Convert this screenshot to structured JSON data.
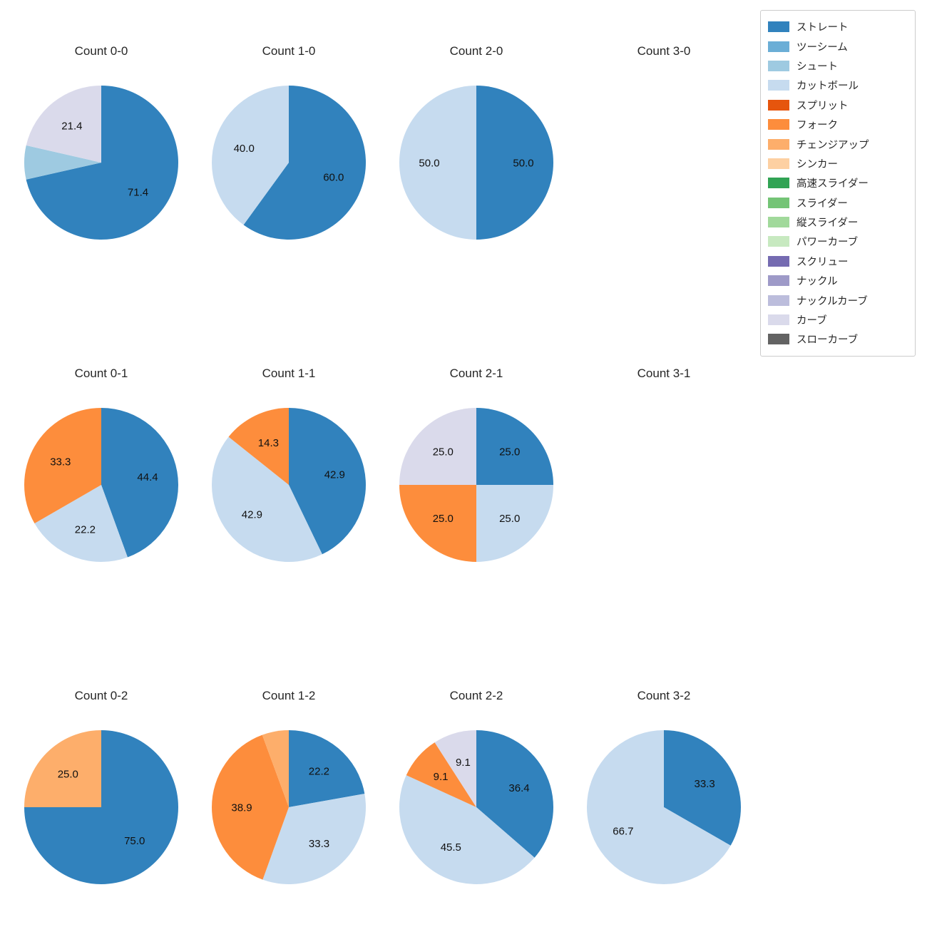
{
  "figure": {
    "background": "#ffffff"
  },
  "legend": {
    "position": "top-right",
    "items": [
      {
        "label": "ストレート",
        "color": "#3182bd"
      },
      {
        "label": "ツーシーム",
        "color": "#6baed6"
      },
      {
        "label": "シュート",
        "color": "#9ecae1"
      },
      {
        "label": "カットボール",
        "color": "#c6dbef"
      },
      {
        "label": "スプリット",
        "color": "#e6550d"
      },
      {
        "label": "フォーク",
        "color": "#fd8d3c"
      },
      {
        "label": "チェンジアップ",
        "color": "#fdae6b"
      },
      {
        "label": "シンカー",
        "color": "#fdd0a2"
      },
      {
        "label": "高速スライダー",
        "color": "#31a354"
      },
      {
        "label": "スライダー",
        "color": "#74c476"
      },
      {
        "label": "縦スライダー",
        "color": "#a1d99b"
      },
      {
        "label": "パワーカーブ",
        "color": "#c7e9c0"
      },
      {
        "label": "スクリュー",
        "color": "#756bb1"
      },
      {
        "label": "ナックル",
        "color": "#9e9ac8"
      },
      {
        "label": "ナックルカーブ",
        "color": "#bcbddc"
      },
      {
        "label": "カーブ",
        "color": "#dadaeb"
      },
      {
        "label": "スローカーブ",
        "color": "#636363"
      }
    ]
  },
  "chart_data": {
    "type": "pie",
    "unit": "percent",
    "start_angle_deg": 90,
    "direction": "clockwise",
    "label_min_value": 8,
    "grid": {
      "rows": 3,
      "cols": 4
    },
    "charts": [
      {
        "title": "Count 0-0",
        "slices": [
          {
            "label": "ストレート",
            "value": 71.4
          },
          {
            "label": "シュート",
            "value": 7.1
          },
          {
            "label": "カーブ",
            "value": 21.4
          }
        ]
      },
      {
        "title": "Count 1-0",
        "slices": [
          {
            "label": "ストレート",
            "value": 60.0
          },
          {
            "label": "カットボール",
            "value": 40.0
          }
        ]
      },
      {
        "title": "Count 2-0",
        "slices": [
          {
            "label": "ストレート",
            "value": 50.0
          },
          {
            "label": "カットボール",
            "value": 50.0
          }
        ]
      },
      {
        "title": "Count 3-0",
        "slices": []
      },
      {
        "title": "Count 0-1",
        "slices": [
          {
            "label": "ストレート",
            "value": 44.4
          },
          {
            "label": "カットボール",
            "value": 22.2
          },
          {
            "label": "フォーク",
            "value": 33.3
          }
        ]
      },
      {
        "title": "Count 1-1",
        "slices": [
          {
            "label": "ストレート",
            "value": 42.9
          },
          {
            "label": "カットボール",
            "value": 42.9
          },
          {
            "label": "フォーク",
            "value": 14.3
          }
        ]
      },
      {
        "title": "Count 2-1",
        "slices": [
          {
            "label": "ストレート",
            "value": 25.0
          },
          {
            "label": "カットボール",
            "value": 25.0
          },
          {
            "label": "フォーク",
            "value": 25.0
          },
          {
            "label": "カーブ",
            "value": 25.0
          }
        ]
      },
      {
        "title": "Count 3-1",
        "slices": []
      },
      {
        "title": "Count 0-2",
        "slices": [
          {
            "label": "ストレート",
            "value": 75.0
          },
          {
            "label": "チェンジアップ",
            "value": 25.0
          }
        ]
      },
      {
        "title": "Count 1-2",
        "slices": [
          {
            "label": "ストレート",
            "value": 22.2
          },
          {
            "label": "カットボール",
            "value": 33.3
          },
          {
            "label": "フォーク",
            "value": 38.9
          },
          {
            "label": "チェンジアップ",
            "value": 5.6
          }
        ]
      },
      {
        "title": "Count 2-2",
        "slices": [
          {
            "label": "ストレート",
            "value": 36.4
          },
          {
            "label": "カットボール",
            "value": 45.5
          },
          {
            "label": "フォーク",
            "value": 9.1
          },
          {
            "label": "カーブ",
            "value": 9.1
          }
        ]
      },
      {
        "title": "Count 3-2",
        "slices": [
          {
            "label": "ストレート",
            "value": 33.3
          },
          {
            "label": "カットボール",
            "value": 66.7
          }
        ]
      }
    ]
  }
}
